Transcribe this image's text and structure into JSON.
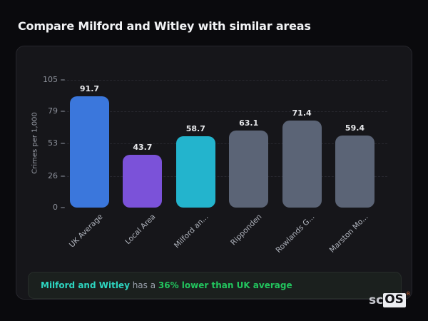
{
  "page": {
    "title": "Compare Milford and Witley with similar areas"
  },
  "chart_data": {
    "type": "bar",
    "title": "Compare Milford and Witley with similar areas",
    "xlabel": "",
    "ylabel": "Crimes per 1,000",
    "ylim": [
      0,
      105
    ],
    "yticks": [
      0,
      26,
      53,
      79,
      105
    ],
    "grid": "horizontal-dashed",
    "legend": "none",
    "categories": [
      "UK Average",
      "Local Area",
      "Milford an...",
      "Ripponden",
      "Rowlands G...",
      "Marston Mo..."
    ],
    "values": [
      91.7,
      43.7,
      58.7,
      63.1,
      71.4,
      59.4
    ],
    "bar_colors": [
      "#3b77dc",
      "#7b52d9",
      "#23b4cd",
      "#5b6476",
      "#5b6476",
      "#5b6476"
    ]
  },
  "note": {
    "highlight": "Milford and Witley",
    "middle": " has a ",
    "stat": "36% lower than UK average",
    "highlight_color": "#2dd4bf",
    "stat_color": "#22c55e"
  },
  "logo": {
    "prefix": "sc",
    "suffix": "OS",
    "reg": "®"
  }
}
